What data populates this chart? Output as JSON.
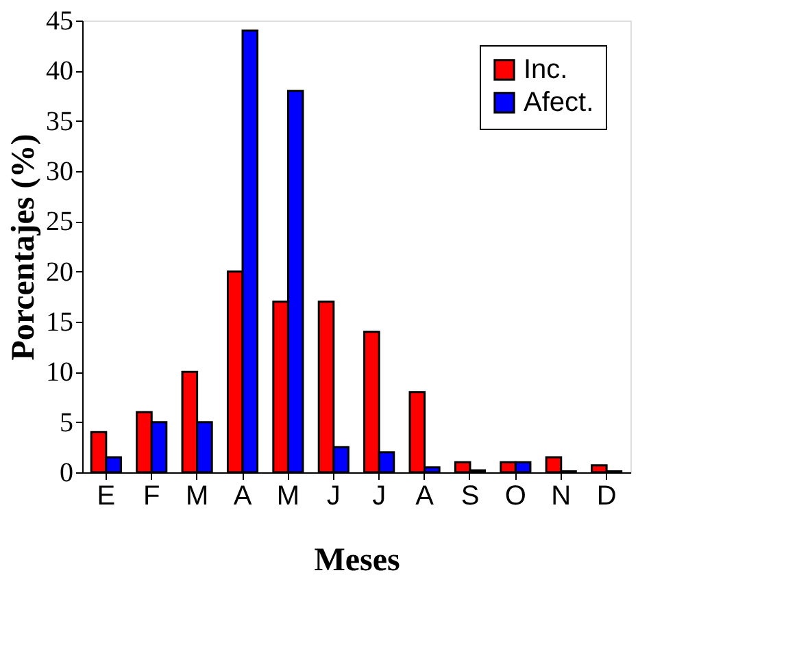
{
  "chart_data": {
    "type": "bar",
    "xlabel": "Meses",
    "ylabel": "Porcentajes (%)",
    "categories": [
      "E",
      "F",
      "M",
      "A",
      "M",
      "J",
      "J",
      "A",
      "S",
      "O",
      "N",
      "D"
    ],
    "series": [
      {
        "name": "Inc.",
        "color": "#ff0000",
        "values": [
          4,
          6,
          10,
          20,
          17,
          17,
          14,
          8,
          1,
          1,
          1.5,
          0.7
        ]
      },
      {
        "name": "Afect.",
        "color": "#0000ff",
        "values": [
          1.5,
          5,
          5,
          44,
          38,
          2.5,
          2,
          0.5,
          0.2,
          1,
          0.1,
          0.1
        ]
      }
    ],
    "ylim": [
      0,
      45
    ],
    "yticks": [
      0,
      5,
      10,
      15,
      20,
      25,
      30,
      35,
      40,
      45
    ],
    "grid": false,
    "legend": "top right"
  }
}
